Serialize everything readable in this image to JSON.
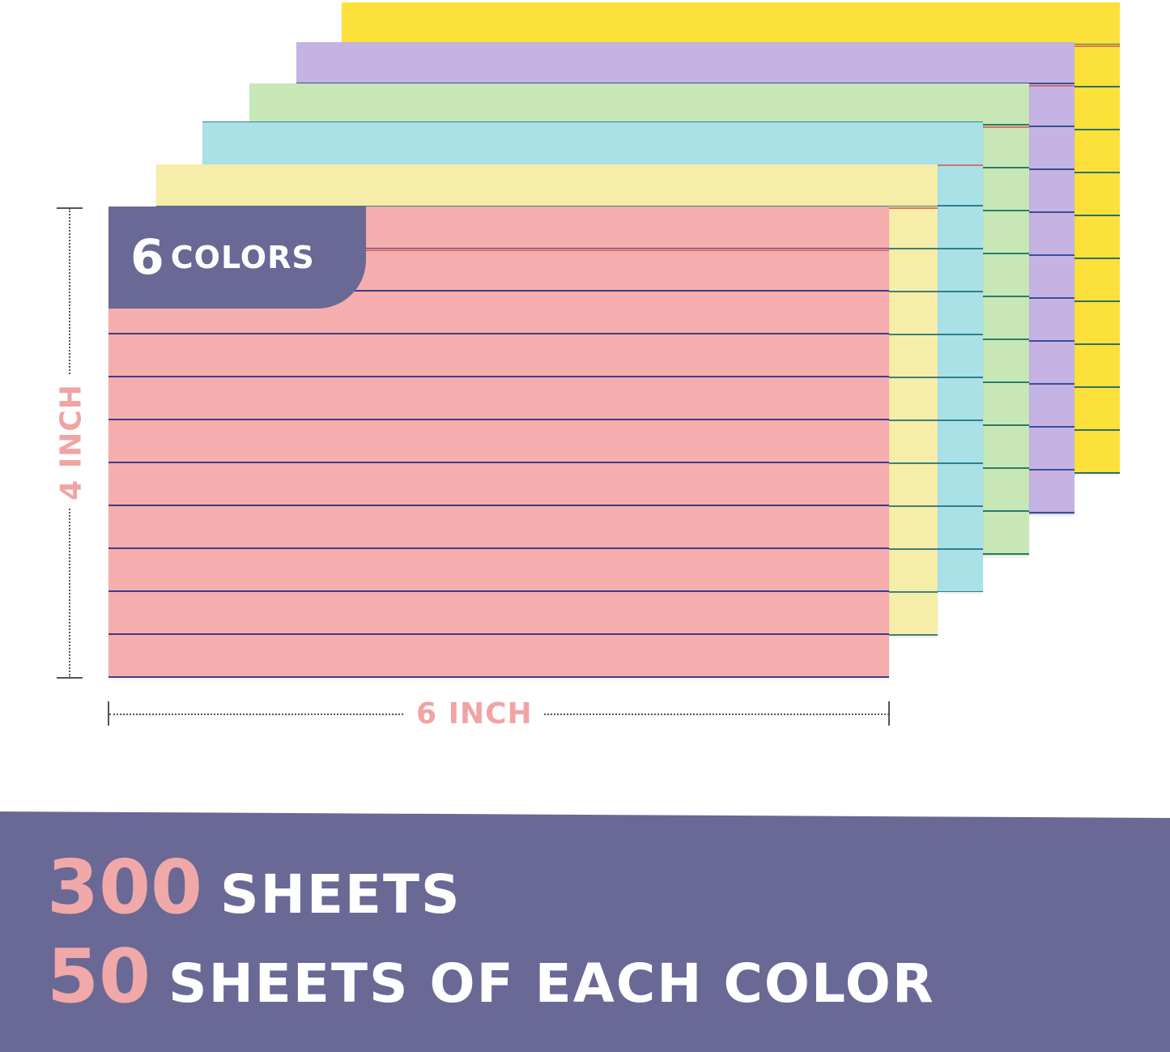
{
  "cards": [
    {
      "color": "#fbe13a",
      "line": "#2f6e6a"
    },
    {
      "color": "#c5b3e3",
      "line": "#3a4f9a"
    },
    {
      "color": "#c7e8b6",
      "line": "#2d7a6a"
    },
    {
      "color": "#a9e1e7",
      "line": "#2f7f8a"
    },
    {
      "color": "#f6eda8",
      "line": "#3f7f7a"
    },
    {
      "color": "#f5adad",
      "line": "#3a3e8c"
    }
  ],
  "badge": {
    "number": "6",
    "word": "COLORS"
  },
  "dimensions": {
    "height_label": "4 INCH",
    "width_label": "6 INCH"
  },
  "banner": {
    "line1": {
      "number": "300",
      "text": "SHEETS"
    },
    "line2": {
      "number": "50",
      "text": "SHEETS OF EACH COLOR"
    }
  },
  "colors": {
    "accent_purple": "#6a6894",
    "accent_pink": "#f0a8a8"
  }
}
